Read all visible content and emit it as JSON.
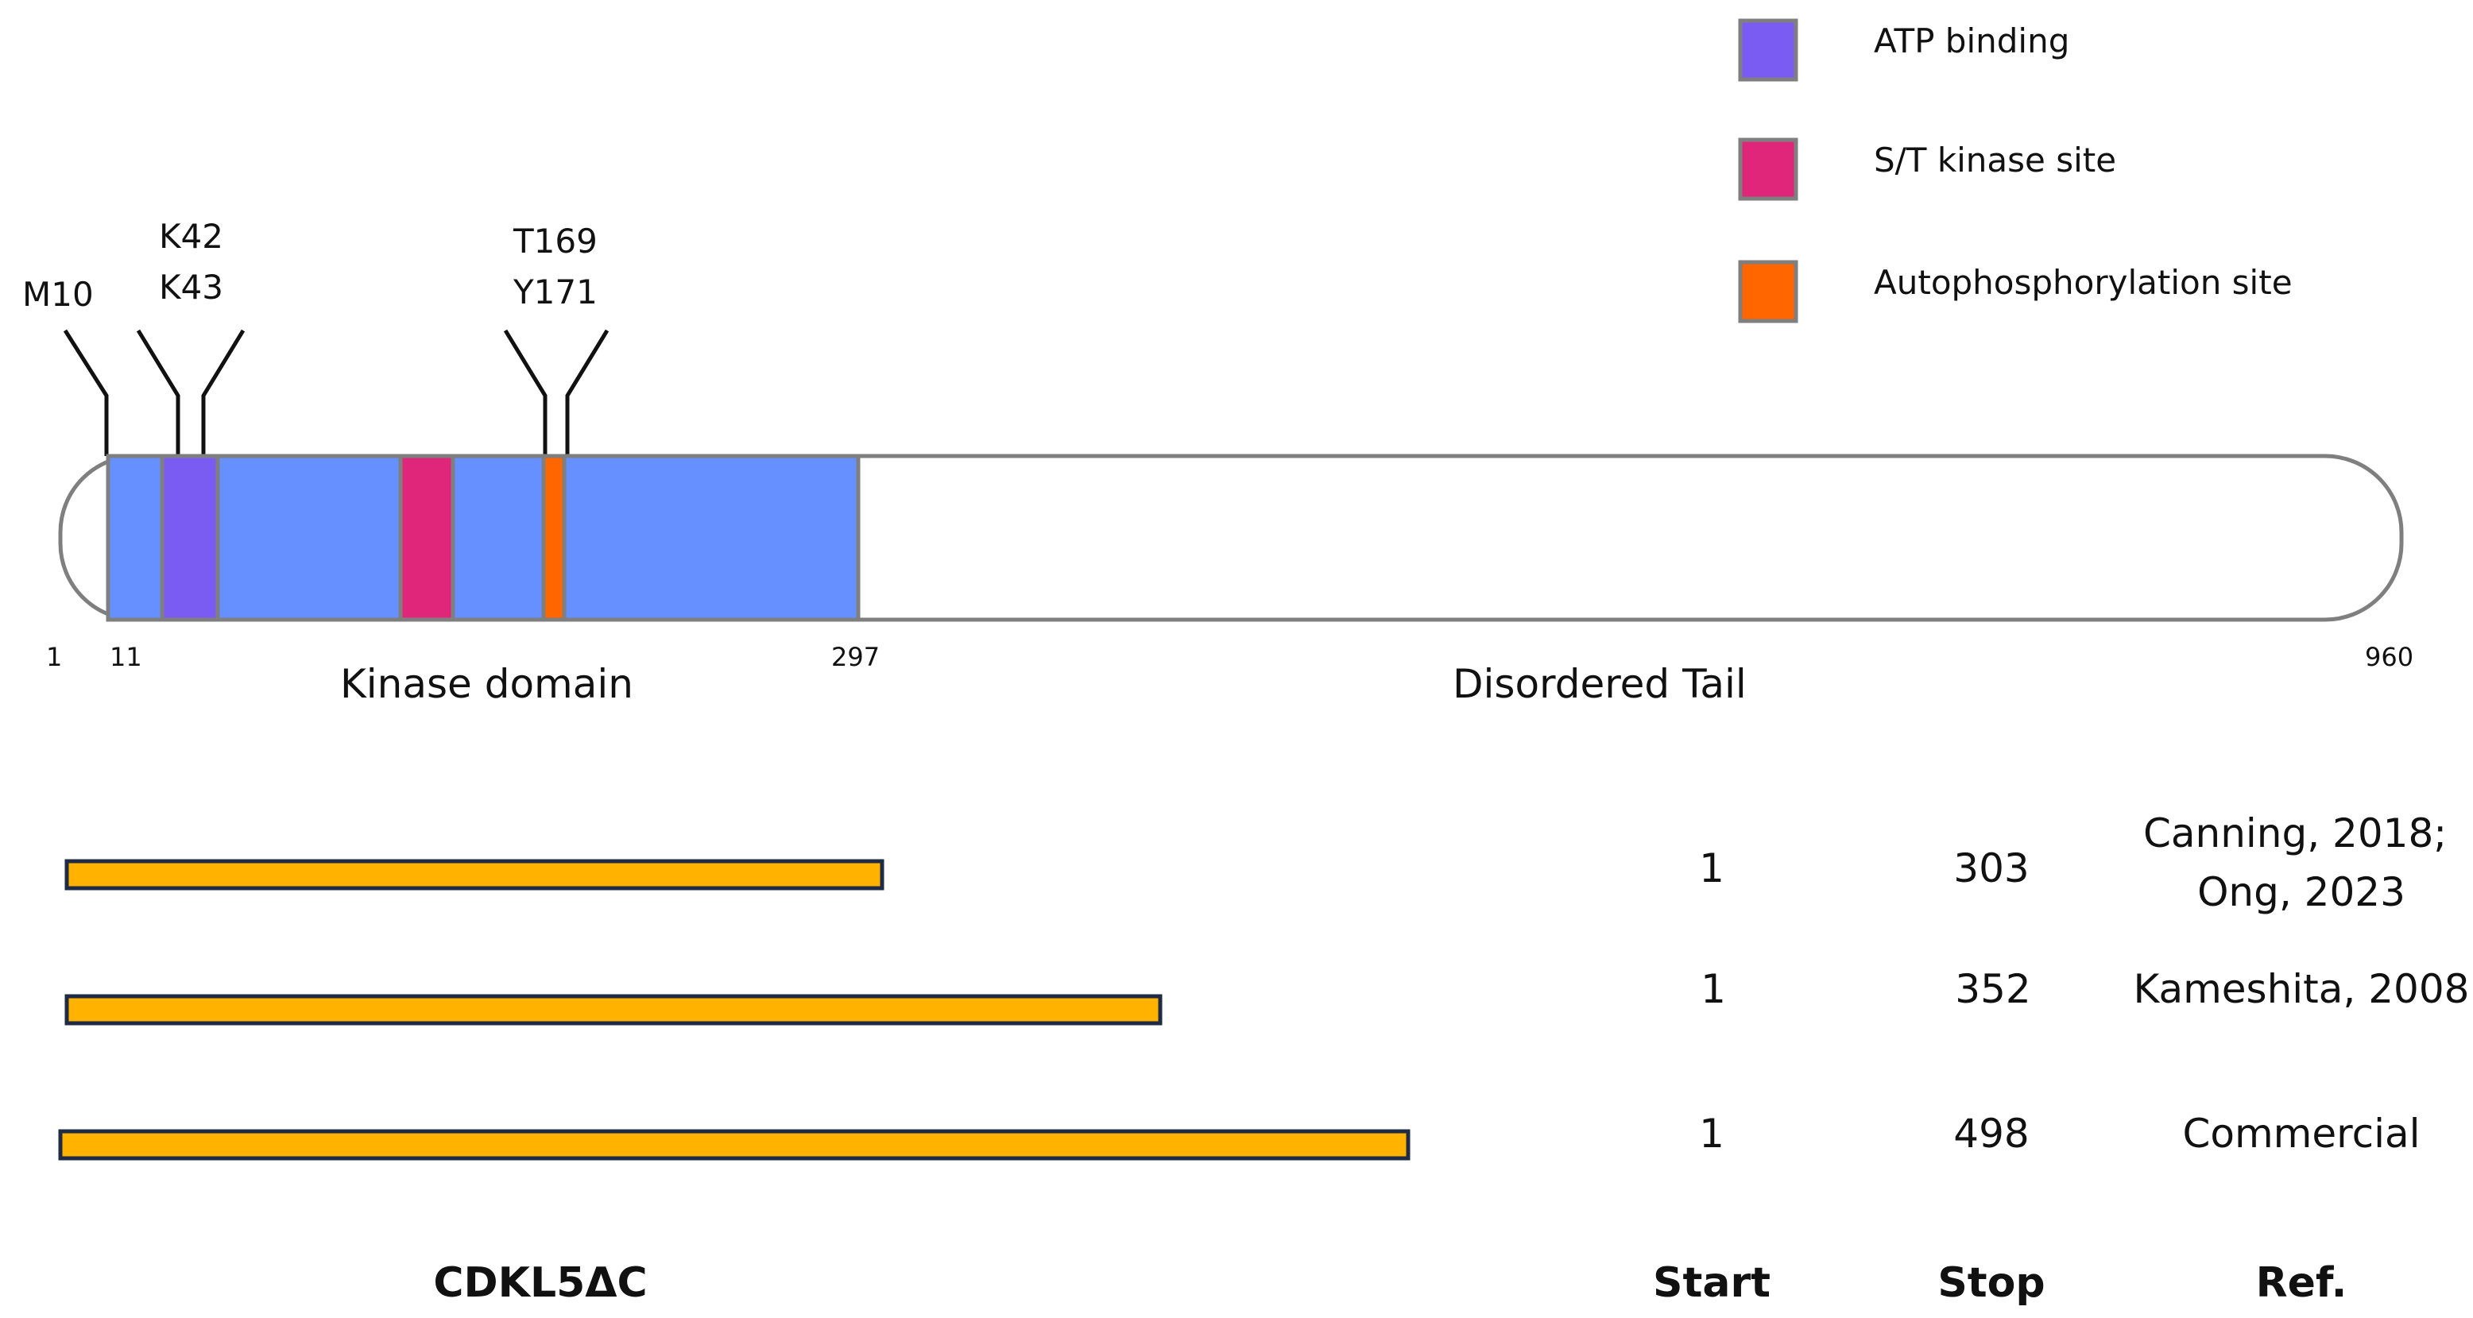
{
  "legend": [
    {
      "label": "ATP binding",
      "color": "#7B5CF2"
    },
    {
      "label": "S/T kinase site",
      "color": "#E0267A"
    },
    {
      "label": "Autophosphorylation site",
      "color": "#FF6600"
    }
  ],
  "protein": {
    "length": 960,
    "kinase_domain": {
      "start": 11,
      "end": 297,
      "label": "Kinase domain",
      "color": "#6690FF"
    },
    "tail_label": "Disordered Tail",
    "position_labels": [
      "1",
      "11",
      "297",
      "960"
    ],
    "sites": [
      {
        "label": "M10"
      },
      {
        "label": "K42\nK43"
      },
      {
        "label": "T169\nY171"
      }
    ]
  },
  "constructs": {
    "bar_color": "#FFB300",
    "rows": [
      {
        "start": "1",
        "stop": "303",
        "ref": "Canning, 2018;\nOng, 2023"
      },
      {
        "start": "1",
        "stop": "352",
        "ref": "Kameshita, 2008"
      },
      {
        "start": "1",
        "stop": "498",
        "ref": "Commercial"
      }
    ],
    "headers": {
      "name": "CDKL5ΔC",
      "start": "Start",
      "stop": "Stop",
      "ref": "Ref."
    }
  }
}
